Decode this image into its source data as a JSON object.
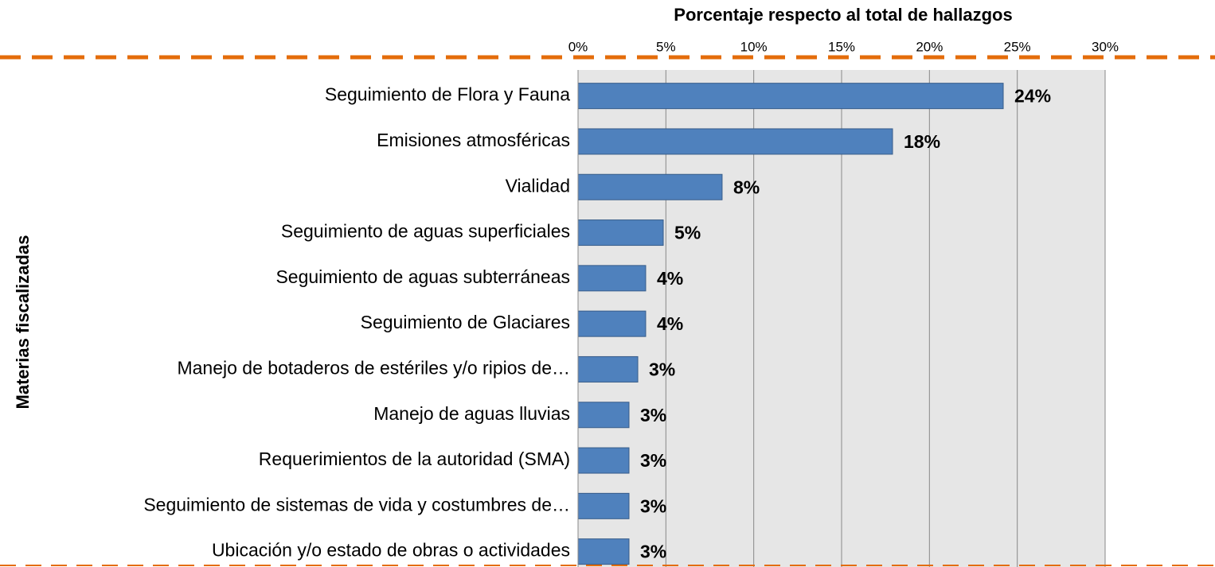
{
  "chart_data": {
    "type": "bar",
    "orientation": "horizontal",
    "title": "Porcentaje respecto al total de hallazgos",
    "y_axis_label": "Materias fiscalizadas",
    "categories": [
      "Seguimiento de Flora y Fauna",
      "Emisiones atmosféricas",
      "Vialidad",
      "Seguimiento de aguas superficiales",
      "Seguimiento de aguas subterráneas",
      "Seguimiento de Glaciares",
      "Manejo de botaderos de estériles y/o ripios de…",
      "Manejo de aguas lluvias",
      "Requerimientos de la autoridad (SMA)",
      "Seguimiento de sistemas de vida y costumbres de…",
      "Ubicación y/o estado de obras o actividades"
    ],
    "values": [
      24.2,
      17.9,
      8.2,
      4.85,
      3.85,
      3.85,
      3.4,
      2.9,
      2.9,
      2.9,
      2.9
    ],
    "value_labels": [
      "24%",
      "18%",
      "8%",
      "5%",
      "4%",
      "4%",
      "3%",
      "3%",
      "3%",
      "3%",
      "3%"
    ],
    "color": "#4f81bd",
    "xlim": [
      0,
      30
    ],
    "xticks": [
      {
        "value": 0,
        "label": "0%"
      },
      {
        "value": 5,
        "label": "5%"
      },
      {
        "value": 10,
        "label": "10%"
      },
      {
        "value": 15,
        "label": "15%"
      },
      {
        "value": 20,
        "label": "20%"
      },
      {
        "value": 25,
        "label": "25%"
      },
      {
        "value": 30,
        "label": "30%"
      }
    ],
    "grid": true
  }
}
